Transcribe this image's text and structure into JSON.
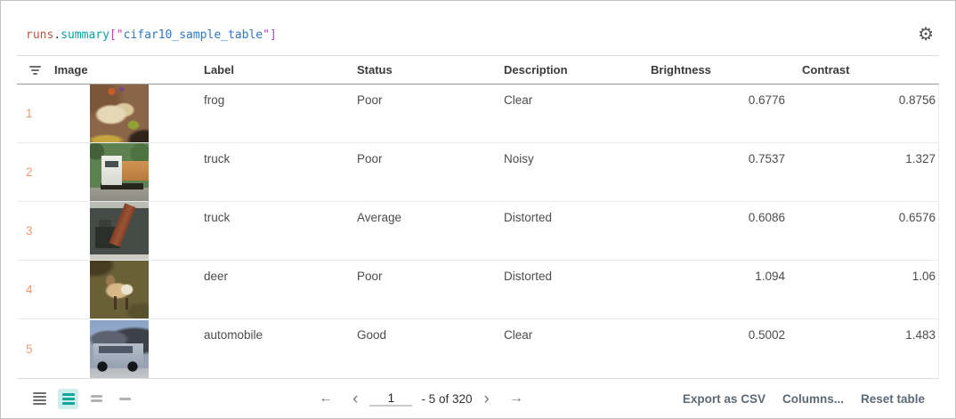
{
  "title": {
    "tokens": [
      {
        "text": "runs",
        "color": "#bf5540"
      },
      {
        "text": ".",
        "color": "#3b3b3b"
      },
      {
        "text": "summary",
        "color": "#0d9ba3"
      },
      {
        "text": "[\"",
        "color": "#bb3fb4"
      },
      {
        "text": "cifar10_sample_table",
        "color": "#2e77c5"
      },
      {
        "text": "\"]",
        "color": "#bb3fb4"
      }
    ],
    "gear_icon_glyph": "⚙"
  },
  "columns": [
    "Image",
    "Label",
    "Status",
    "Description",
    "Brightness",
    "Contrast"
  ],
  "rows": [
    {
      "index": "1",
      "image": "frog-thumbnail",
      "label": "frog",
      "status": "Poor",
      "description": "Clear",
      "brightness": "0.6776",
      "contrast": "0.8756"
    },
    {
      "index": "2",
      "image": "truck-thumbnail",
      "label": "truck",
      "status": "Poor",
      "description": "Noisy",
      "brightness": "0.7537",
      "contrast": "1.327"
    },
    {
      "index": "3",
      "image": "log-truck-thumbnail",
      "label": "truck",
      "status": "Average",
      "description": "Distorted",
      "brightness": "0.6086",
      "contrast": "0.6576"
    },
    {
      "index": "4",
      "image": "deer-thumbnail",
      "label": "deer",
      "status": "Poor",
      "description": "Distorted",
      "brightness": "1.094",
      "contrast": "1.06"
    },
    {
      "index": "5",
      "image": "automobile-thumbnail",
      "label": "automobile",
      "status": "Good",
      "description": "Clear",
      "brightness": "0.5002",
      "contrast": "1.483"
    }
  ],
  "footer": {
    "pagination": {
      "first_icon": "←",
      "prev_icon": "‹",
      "page": "1",
      "range": "- 5 of 320",
      "next_icon": "›",
      "last_icon": "→"
    },
    "buttons": {
      "export_csv": "Export as CSV",
      "columns": "Columns...",
      "reset": "Reset table"
    }
  },
  "colors": {
    "accent_teal": "#14a79c",
    "accent_teal_bg": "#cdeeea",
    "row_index_orange": "#f09a74",
    "footer_button_gray": "#5c6a76",
    "header_text": "#3a3a3a"
  }
}
